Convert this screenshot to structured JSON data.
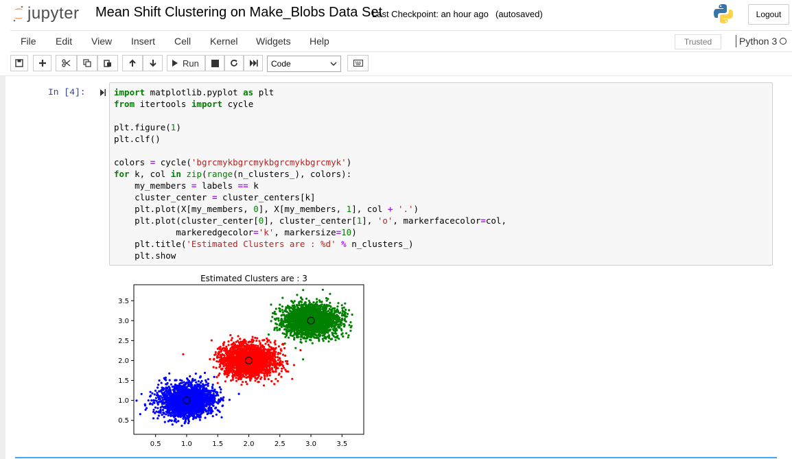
{
  "header": {
    "logo_text": "jupyter",
    "notebook_title": "Mean Shift Clustering on Make_Blobs Data Set",
    "checkpoint": "Last Checkpoint: an hour ago",
    "autosave": "(autosaved)",
    "logout_label": "Logout"
  },
  "menu": {
    "items": [
      "File",
      "Edit",
      "View",
      "Insert",
      "Cell",
      "Kernel",
      "Widgets",
      "Help"
    ],
    "trusted": "Trusted",
    "kernel_name": "Python 3"
  },
  "toolbar": {
    "run_label": "Run",
    "cell_type": "Code",
    "icons": [
      "save-icon",
      "plus-icon",
      "cut-icon",
      "copy-icon",
      "paste-icon",
      "arrow-up-icon",
      "arrow-down-icon",
      "run-icon",
      "stop-icon",
      "restart-icon",
      "fast-forward-icon",
      "keyboard-icon"
    ]
  },
  "cell": {
    "prompt": "In [4]:",
    "code": [
      [
        [
          "kw",
          "import"
        ],
        [
          "t",
          " matplotlib.pyplot "
        ],
        [
          "kw",
          "as"
        ],
        [
          "t",
          " plt"
        ]
      ],
      [
        [
          "kw",
          "from"
        ],
        [
          "t",
          " itertools "
        ],
        [
          "kw",
          "import"
        ],
        [
          "t",
          " cycle"
        ]
      ],
      [],
      [
        [
          "t",
          "plt.figure("
        ],
        [
          "num",
          "1"
        ],
        [
          "t",
          ")"
        ]
      ],
      [
        [
          "t",
          "plt.clf()"
        ]
      ],
      [],
      [
        [
          "t",
          "colors "
        ],
        [
          "op",
          "="
        ],
        [
          "t",
          " cycle("
        ],
        [
          "str",
          "'bgrcmykbgrcmykbgrcmykbgrcmyk'"
        ],
        [
          "t",
          ")"
        ]
      ],
      [
        [
          "kw",
          "for"
        ],
        [
          "t",
          " k, col "
        ],
        [
          "kw",
          "in"
        ],
        [
          "t",
          " "
        ],
        [
          "bi",
          "zip"
        ],
        [
          "t",
          "("
        ],
        [
          "bi",
          "range"
        ],
        [
          "t",
          "(n_clusters_), colors):"
        ]
      ],
      [
        [
          "t",
          "    my_members "
        ],
        [
          "op",
          "="
        ],
        [
          "t",
          " labels "
        ],
        [
          "op",
          "=="
        ],
        [
          "t",
          " k"
        ]
      ],
      [
        [
          "t",
          "    cluster_center "
        ],
        [
          "op",
          "="
        ],
        [
          "t",
          " cluster_centers[k]"
        ]
      ],
      [
        [
          "t",
          "    plt.plot(X[my_members, "
        ],
        [
          "num",
          "0"
        ],
        [
          "t",
          "], X[my_members, "
        ],
        [
          "num",
          "1"
        ],
        [
          "t",
          "], col "
        ],
        [
          "op",
          "+"
        ],
        [
          "t",
          " "
        ],
        [
          "str",
          "'.'"
        ],
        [
          "t",
          ")"
        ]
      ],
      [
        [
          "t",
          "    plt.plot(cluster_center["
        ],
        [
          "num",
          "0"
        ],
        [
          "t",
          "], cluster_center["
        ],
        [
          "num",
          "1"
        ],
        [
          "t",
          "], "
        ],
        [
          "str",
          "'o'"
        ],
        [
          "t",
          ", markerfacecolor"
        ],
        [
          "op",
          "="
        ],
        [
          "t",
          "col,"
        ]
      ],
      [
        [
          "t",
          "            markeredgecolor"
        ],
        [
          "op",
          "="
        ],
        [
          "str",
          "'k'"
        ],
        [
          "t",
          ", markersize"
        ],
        [
          "op",
          "="
        ],
        [
          "num",
          "10"
        ],
        [
          "t",
          ")"
        ]
      ],
      [
        [
          "t",
          "    plt.title("
        ],
        [
          "str",
          "'Estimated Clusters are : %d'"
        ],
        [
          "t",
          " "
        ],
        [
          "op",
          "%"
        ],
        [
          "t",
          " n_clusters_)"
        ]
      ],
      [
        [
          "t",
          "    plt.show"
        ]
      ]
    ]
  },
  "chart_data": {
    "type": "scatter",
    "title": "Estimated Clusters are : 3",
    "xlabel": "",
    "ylabel": "",
    "xlim": [
      0.15,
      3.85
    ],
    "ylim": [
      0.15,
      3.9
    ],
    "xticks": [
      "0.5",
      "1.0",
      "1.5",
      "2.0",
      "2.5",
      "3.0",
      "3.5"
    ],
    "yticks": [
      "0.5",
      "1.0",
      "1.5",
      "2.0",
      "2.5",
      "3.0",
      "3.5"
    ],
    "grid": false,
    "clusters": [
      {
        "color": "#0000ff",
        "center": [
          1.0,
          1.0
        ],
        "spread": 0.22,
        "count": 2200
      },
      {
        "color": "#ff0000",
        "center": [
          2.0,
          2.0
        ],
        "spread": 0.22,
        "count": 2200
      },
      {
        "color": "#008000",
        "center": [
          3.0,
          3.0
        ],
        "spread": 0.22,
        "count": 2200
      }
    ]
  }
}
